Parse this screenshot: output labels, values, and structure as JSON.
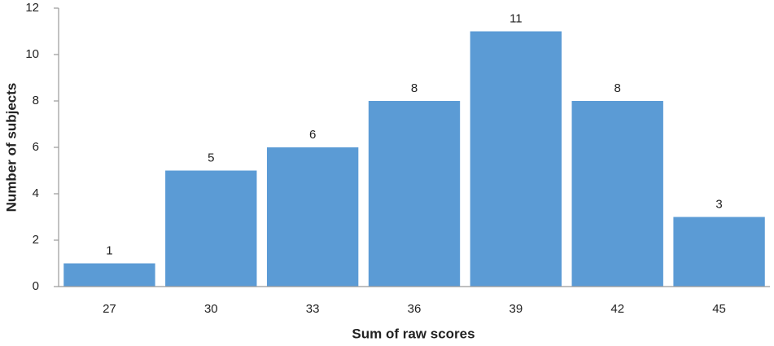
{
  "chart_data": {
    "type": "bar",
    "x_label": "Sum of raw scores",
    "y_label": "Number of subjects",
    "categories": [
      "27",
      "30",
      "33",
      "36",
      "39",
      "42",
      "45"
    ],
    "values": [
      1,
      5,
      6,
      8,
      11,
      8,
      3
    ],
    "color": "#5b9bd5",
    "ylim": [
      0,
      12
    ],
    "yticks": [
      0,
      2,
      4,
      6,
      8,
      10,
      12
    ],
    "grid": false
  }
}
